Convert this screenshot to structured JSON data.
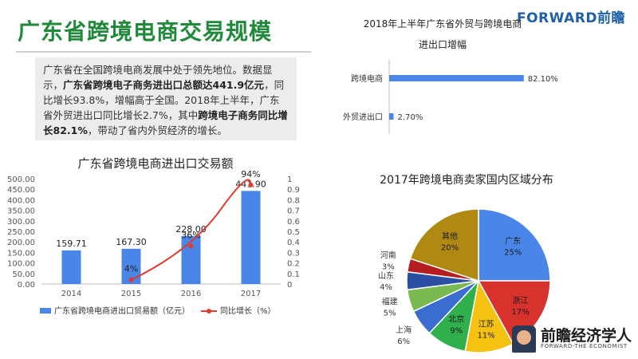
{
  "header": {
    "title": "广东省跨境电商交易规模",
    "logo": "FORWARD前瞻"
  },
  "summary": {
    "parts": [
      {
        "text": "广东省在全国跨境电商发展中处于领先地位。数据显示，",
        "bold": false
      },
      {
        "text": "广东省跨境电子商务进出口总额达441.9亿元",
        "bold": true
      },
      {
        "text": "，同比增长93.8%，增幅高于全国。2018年上半年，广东省外贸进出口同比增长2.7%，其中",
        "bold": false
      },
      {
        "text": "跨境电子商务同比增长82.1%",
        "bold": true
      },
      {
        "text": "，带动了省内外贸经济的增长。",
        "bold": false
      }
    ]
  },
  "brand": {
    "name": "前瞻经济学人",
    "sub": "FORWARD-THE ECONOMIST"
  },
  "chart_data": [
    {
      "type": "bar",
      "title": "广东省跨境电商进出口交易额",
      "categories": [
        "2014",
        "2015",
        "2016",
        "2017"
      ],
      "series": [
        {
          "name": "广东省跨境电商进出口贸易额（亿元）",
          "type": "bar",
          "axis": "left",
          "values": [
            159.71,
            167.3,
            228.0,
            441.9
          ],
          "labels": [
            "159.71",
            "167.30",
            "228.00",
            "441.90"
          ],
          "color": "#4a86e8"
        },
        {
          "name": "同比增长（%）",
          "type": "line",
          "axis": "right",
          "values": [
            null,
            0.04,
            0.36,
            0.94
          ],
          "labels": [
            "",
            "4%",
            "36%",
            "94%"
          ],
          "color": "#e03a2e"
        }
      ],
      "y_left": {
        "ticks": [
          "0.00",
          "50.00",
          "100.00",
          "150.00",
          "200.00",
          "250.00",
          "300.00",
          "350.00",
          "400.00",
          "450.00",
          "500.00"
        ],
        "min": 0,
        "max": 500
      },
      "y_right": {
        "ticks": [
          "0",
          "0.1",
          "0.2",
          "0.3",
          "0.4",
          "0.5",
          "0.6",
          "0.7",
          "0.8",
          "0.9",
          "1"
        ],
        "min": 0,
        "max": 1
      },
      "legend_position": "bottom"
    },
    {
      "type": "bar",
      "orientation": "horizontal",
      "title": [
        "2018年上半年广东省外贸与跨境电商",
        "进出口增幅"
      ],
      "categories": [
        "跨境电商",
        "外贸进出口"
      ],
      "values": [
        82.1,
        2.7
      ],
      "labels": [
        "82.10%",
        "2.70%"
      ],
      "color": "#4a86e8"
    },
    {
      "type": "pie",
      "title": "2017年跨境电商卖家国内区域分布",
      "slices": [
        {
          "name": "广东",
          "value": 25,
          "label": "25%",
          "color": "#4a86e8"
        },
        {
          "name": "浙江",
          "value": 17,
          "label": "17%",
          "color": "#d8322c"
        },
        {
          "name": "江苏",
          "value": 11,
          "label": "11%",
          "color": "#f5c211"
        },
        {
          "name": "北京",
          "value": 9,
          "label": "9%",
          "color": "#2fb04c"
        },
        {
          "name": "上海",
          "value": 6,
          "label": "6%",
          "color": "#3b6ccf"
        },
        {
          "name": "福建",
          "value": 5,
          "label": "5%",
          "color": "#79b94f"
        },
        {
          "name": "山东",
          "value": 4,
          "label": "4%",
          "color": "#2a4fa3"
        },
        {
          "name": "河南",
          "value": 3,
          "label": "3%",
          "color": "#b41e1e"
        },
        {
          "name": "其他",
          "value": 20,
          "label": "20%",
          "color": "#b08912"
        }
      ]
    }
  ]
}
